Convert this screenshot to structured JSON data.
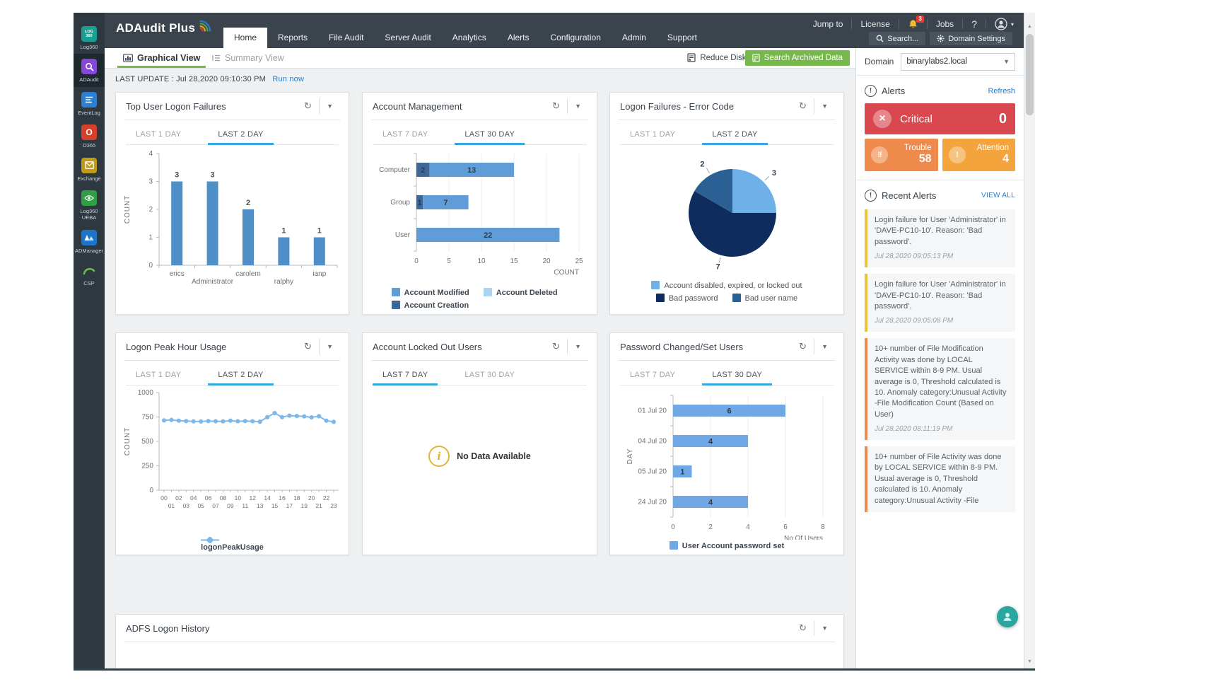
{
  "topbar": {
    "logo_text": "ADAudit Plus",
    "nav": [
      "Home",
      "Reports",
      "File Audit",
      "Server Audit",
      "Analytics",
      "Alerts",
      "Configuration",
      "Admin",
      "Support"
    ],
    "active_nav": "Home",
    "jump_to": "Jump to",
    "license": "License",
    "bell_badge": "3",
    "jobs": "Jobs",
    "help": "?",
    "search_btn": "Search...",
    "domain_settings_btn": "Domain Settings"
  },
  "sidebar": {
    "items": [
      {
        "label": "Log360",
        "icon": "log360-icon",
        "active": false
      },
      {
        "label": "ADAudit",
        "icon": "adaudit-magnifier-icon",
        "active": true
      },
      {
        "label": "EventLog",
        "icon": "eventlog-icon",
        "active": false
      },
      {
        "label": "O365",
        "icon": "o365-icon",
        "active": false
      },
      {
        "label": "Exchange",
        "icon": "exchange-envelope-icon",
        "active": false
      },
      {
        "label": "Log360 UEBA",
        "icon": "ueba-eye-icon",
        "active": false
      },
      {
        "label": "ADManager",
        "icon": "admanager-icon",
        "active": false
      },
      {
        "label": "CSP",
        "icon": "csp-arc-icon",
        "active": false
      }
    ]
  },
  "subheader": {
    "graphical_view": "Graphical View",
    "summary_view": "Summary View",
    "reduce_disk_usage": "Reduce Disk Usage",
    "search_archived_data": "Search Archived Data",
    "domain_label": "Domain",
    "domain_value": "binarylabs2.local"
  },
  "last_update": {
    "text": "LAST UPDATE : Jul 28,2020 09:10:30 PM",
    "run_now": "Run now"
  },
  "adfs_title": "ADFS Logon History",
  "chart_data": [
    {
      "type": "bar",
      "title": "Top User Logon Failures",
      "tabs": [
        "LAST 1 DAY",
        "LAST 2 DAY"
      ],
      "active_tab": "LAST 2 DAY",
      "categories": [
        "erics",
        "Administrator",
        "carolem",
        "ralphy",
        "ianp"
      ],
      "values": [
        3,
        3,
        2,
        1,
        1
      ],
      "ylabel": "COUNT",
      "ylim": [
        0,
        4
      ],
      "yticks": [
        0,
        1,
        2,
        3,
        4
      ],
      "bar_color": "#4d8fc6"
    },
    {
      "type": "bar-h-stacked",
      "title": "Account Management",
      "tabs": [
        "LAST 7 DAY",
        "LAST 30 DAY"
      ],
      "active_tab": "LAST 30 DAY",
      "categories": [
        "Computer",
        "Group",
        "User"
      ],
      "series": [
        {
          "name": "Account Creation",
          "color": "#3f6699",
          "values": [
            2,
            1,
            0
          ]
        },
        {
          "name": "Account Modified",
          "color": "#5f9cd8",
          "values": [
            13,
            7,
            22
          ]
        }
      ],
      "legend": [
        {
          "label": "Account Modified",
          "color": "#5f9cd8"
        },
        {
          "label": "Account Deleted",
          "color": "#a9d5f2"
        },
        {
          "label": "Account Creation",
          "color": "#3f6699"
        }
      ],
      "xlabel": "COUNT",
      "xlim": [
        0,
        25
      ],
      "xticks": [
        0,
        5,
        10,
        15,
        20,
        25
      ]
    },
    {
      "type": "pie",
      "title": "Logon Failures - Error Code",
      "tabs": [
        "LAST 1 DAY",
        "LAST 2 DAY"
      ],
      "active_tab": "LAST 2 DAY",
      "slices": [
        {
          "label": "Account disabled, expired, or locked out",
          "value": 3,
          "color": "#6fb0e8"
        },
        {
          "label": "Bad password",
          "value": 7,
          "color": "#0e2c5e"
        },
        {
          "label": "Bad user name",
          "value": 2,
          "color": "#2b6095"
        }
      ]
    },
    {
      "type": "line",
      "title": "Logon Peak Hour Usage",
      "tabs": [
        "LAST 1 DAY",
        "LAST 2 DAY"
      ],
      "active_tab": "LAST 2 DAY",
      "x": [
        "00",
        "01",
        "02",
        "03",
        "04",
        "05",
        "06",
        "07",
        "08",
        "09",
        "10",
        "11",
        "12",
        "13",
        "14",
        "15",
        "16",
        "17",
        "18",
        "19",
        "20",
        "21",
        "22",
        "23"
      ],
      "values": [
        715,
        720,
        712,
        708,
        705,
        704,
        708,
        706,
        705,
        712,
        706,
        708,
        706,
        702,
        748,
        790,
        748,
        764,
        760,
        756,
        746,
        758,
        712,
        700
      ],
      "ylabel": "COUNT",
      "ylim": [
        0,
        1000
      ],
      "yticks": [
        0,
        250,
        500,
        750,
        1000
      ],
      "legend": "logonPeakUsage",
      "color": "#7cb8ea"
    },
    {
      "type": "nodata",
      "title": "Account Locked Out Users",
      "tabs": [
        "LAST 7 DAY",
        "LAST 30 DAY"
      ],
      "active_tab": "LAST 7 DAY",
      "message": "No Data Available"
    },
    {
      "type": "bar-h",
      "title": "Password Changed/Set Users",
      "tabs": [
        "LAST 7 DAY",
        "LAST 30 DAY"
      ],
      "active_tab": "LAST 30 DAY",
      "categories": [
        "01 Jul 20",
        "04 Jul 20",
        "05 Jul 20",
        "24 Jul 20"
      ],
      "values": [
        6,
        4,
        1,
        4
      ],
      "ylabel": "DAY",
      "xlabel": "No.Of Users",
      "xlim": [
        0,
        8
      ],
      "xticks": [
        0,
        2,
        4,
        6,
        8
      ],
      "legend": "User Account password set",
      "bar_color": "#6fa8e4"
    }
  ],
  "alerts": {
    "title": "Alerts",
    "refresh_label": "Refresh",
    "summary": [
      {
        "label": "Critical",
        "count": 0,
        "color": "#d9474f",
        "icon": "critical-x-icon"
      },
      {
        "label": "Trouble",
        "count": 58,
        "color": "#ef8a4d",
        "icon": "trouble-double-exclamation-icon"
      },
      {
        "label": "Attention",
        "count": 4,
        "color": "#f3a43c",
        "icon": "attention-exclamation-icon"
      }
    ],
    "recent_title": "Recent Alerts",
    "view_all": "VIEW ALL",
    "items": [
      {
        "text": "Login failure for User 'Administrator' in 'DAVE-PC10-10'. Reason: 'Bad password'.",
        "time": "Jul 28,2020 09:05:13 PM",
        "color": "#e7c63a"
      },
      {
        "text": "Login failure for User 'Administrator' in 'DAVE-PC10-10'. Reason: 'Bad password'.",
        "time": "Jul 28,2020 09:05:08 PM",
        "color": "#e7c63a"
      },
      {
        "text": "10+ number of File Modification Activity was done by LOCAL SERVICE within 8-9 PM. Usual average is 0, Threshold calculated is 10. Anomaly category:Unusual Activity -File Modification Count (Based on User)",
        "time": "Jul 28,2020 08:11:19 PM",
        "color": "#ef8a4d"
      },
      {
        "text": "10+ number of File Activity was done by LOCAL SERVICE within 8-9 PM. Usual average is 0, Threshold calculated is 10. Anomaly category:Unusual Activity -File",
        "time": "",
        "color": "#ef8a4d"
      }
    ]
  }
}
